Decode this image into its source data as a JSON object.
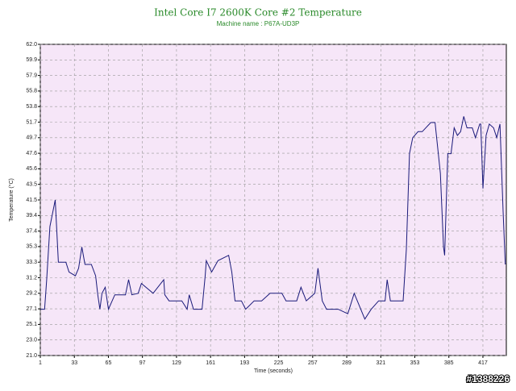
{
  "chart_data": {
    "type": "line",
    "title": "Intel Core I7 2600K Core #2 Temperature",
    "subtitle": "Machine name : P67A-UD3P",
    "x_label": "Time (seconds)",
    "y_label": "Temperature (°C)",
    "watermark": "#1388226",
    "xlim": [
      1,
      439
    ],
    "ylim": [
      21,
      62
    ],
    "xticks": [
      1,
      33,
      65,
      97,
      129,
      161,
      193,
      225,
      257,
      289,
      321,
      353,
      385,
      417
    ],
    "yticks": [
      {
        "value": 21,
        "label": "21.0"
      },
      {
        "value": 23.05,
        "label": "23.0"
      },
      {
        "value": 25.1,
        "label": "25.1"
      },
      {
        "value": 27.15,
        "label": "27.1"
      },
      {
        "value": 29.2,
        "label": "29.2"
      },
      {
        "value": 31.25,
        "label": "31.2"
      },
      {
        "value": 33.3,
        "label": "33.3"
      },
      {
        "value": 35.35,
        "label": "35.3"
      },
      {
        "value": 37.4,
        "label": "37.4"
      },
      {
        "value": 39.45,
        "label": "39.4"
      },
      {
        "value": 41.5,
        "label": "41.5"
      },
      {
        "value": 43.55,
        "label": "43.5"
      },
      {
        "value": 45.6,
        "label": "45.6"
      },
      {
        "value": 47.65,
        "label": "47.6"
      },
      {
        "value": 49.7,
        "label": "49.7"
      },
      {
        "value": 51.75,
        "label": "51.7"
      },
      {
        "value": 53.8,
        "label": "53.8"
      },
      {
        "value": 55.85,
        "label": "55.8"
      },
      {
        "value": 57.9,
        "label": "57.9"
      },
      {
        "value": 59.95,
        "label": "59.9"
      },
      {
        "value": 62,
        "label": "62.0"
      }
    ],
    "grid": true,
    "series": [
      {
        "color": "#1a1a7a",
        "x": [
          1,
          5,
          6,
          7,
          10,
          15,
          18,
          25,
          28,
          34,
          37,
          40,
          43,
          49,
          53,
          55,
          57,
          59,
          62,
          65,
          71,
          81,
          84,
          87,
          93,
          96,
          107,
          117,
          118,
          122,
          134,
          139,
          141,
          145,
          153,
          156,
          157,
          162,
          168,
          178,
          181,
          184,
          190,
          194,
          202,
          209,
          217,
          228,
          232,
          242,
          246,
          251,
          259,
          262,
          266,
          270,
          281,
          290,
          296,
          306,
          312,
          319,
          325,
          327,
          330,
          342,
          345,
          348,
          351,
          356,
          360,
          368,
          372,
          377,
          380,
          381,
          384,
          387,
          390,
          393,
          396,
          399,
          402,
          407,
          410,
          414,
          415,
          417,
          420,
          423,
          427,
          430,
          433,
          436,
          438
        ],
        "values": [
          27.1,
          27.1,
          29,
          31,
          38,
          41.5,
          33.3,
          33.3,
          32,
          31.5,
          32.5,
          35.3,
          33,
          33,
          31.5,
          29,
          27.1,
          29.2,
          30,
          27.1,
          29,
          29,
          31,
          29,
          29.2,
          30.5,
          29.2,
          31,
          29,
          28.2,
          28.2,
          27.1,
          29,
          27.1,
          27.1,
          31.5,
          33.5,
          32,
          33.5,
          34.2,
          32,
          28.2,
          28.2,
          27.1,
          28.2,
          28.2,
          29.2,
          29.2,
          28.2,
          28.2,
          30,
          28.2,
          29.2,
          32.5,
          28.2,
          27.1,
          27.1,
          26.5,
          29.2,
          25.8,
          27.1,
          28.2,
          28.2,
          31,
          28.2,
          28.2,
          35,
          47.6,
          49.7,
          50.5,
          50.5,
          51.7,
          51.7,
          45,
          35.3,
          34.2,
          47.6,
          47.6,
          51,
          50,
          50.5,
          52.5,
          51,
          51,
          49.7,
          51.5,
          51.5,
          43,
          50,
          51.5,
          51,
          49.7,
          51.5,
          40,
          33
        ]
      }
    ]
  }
}
